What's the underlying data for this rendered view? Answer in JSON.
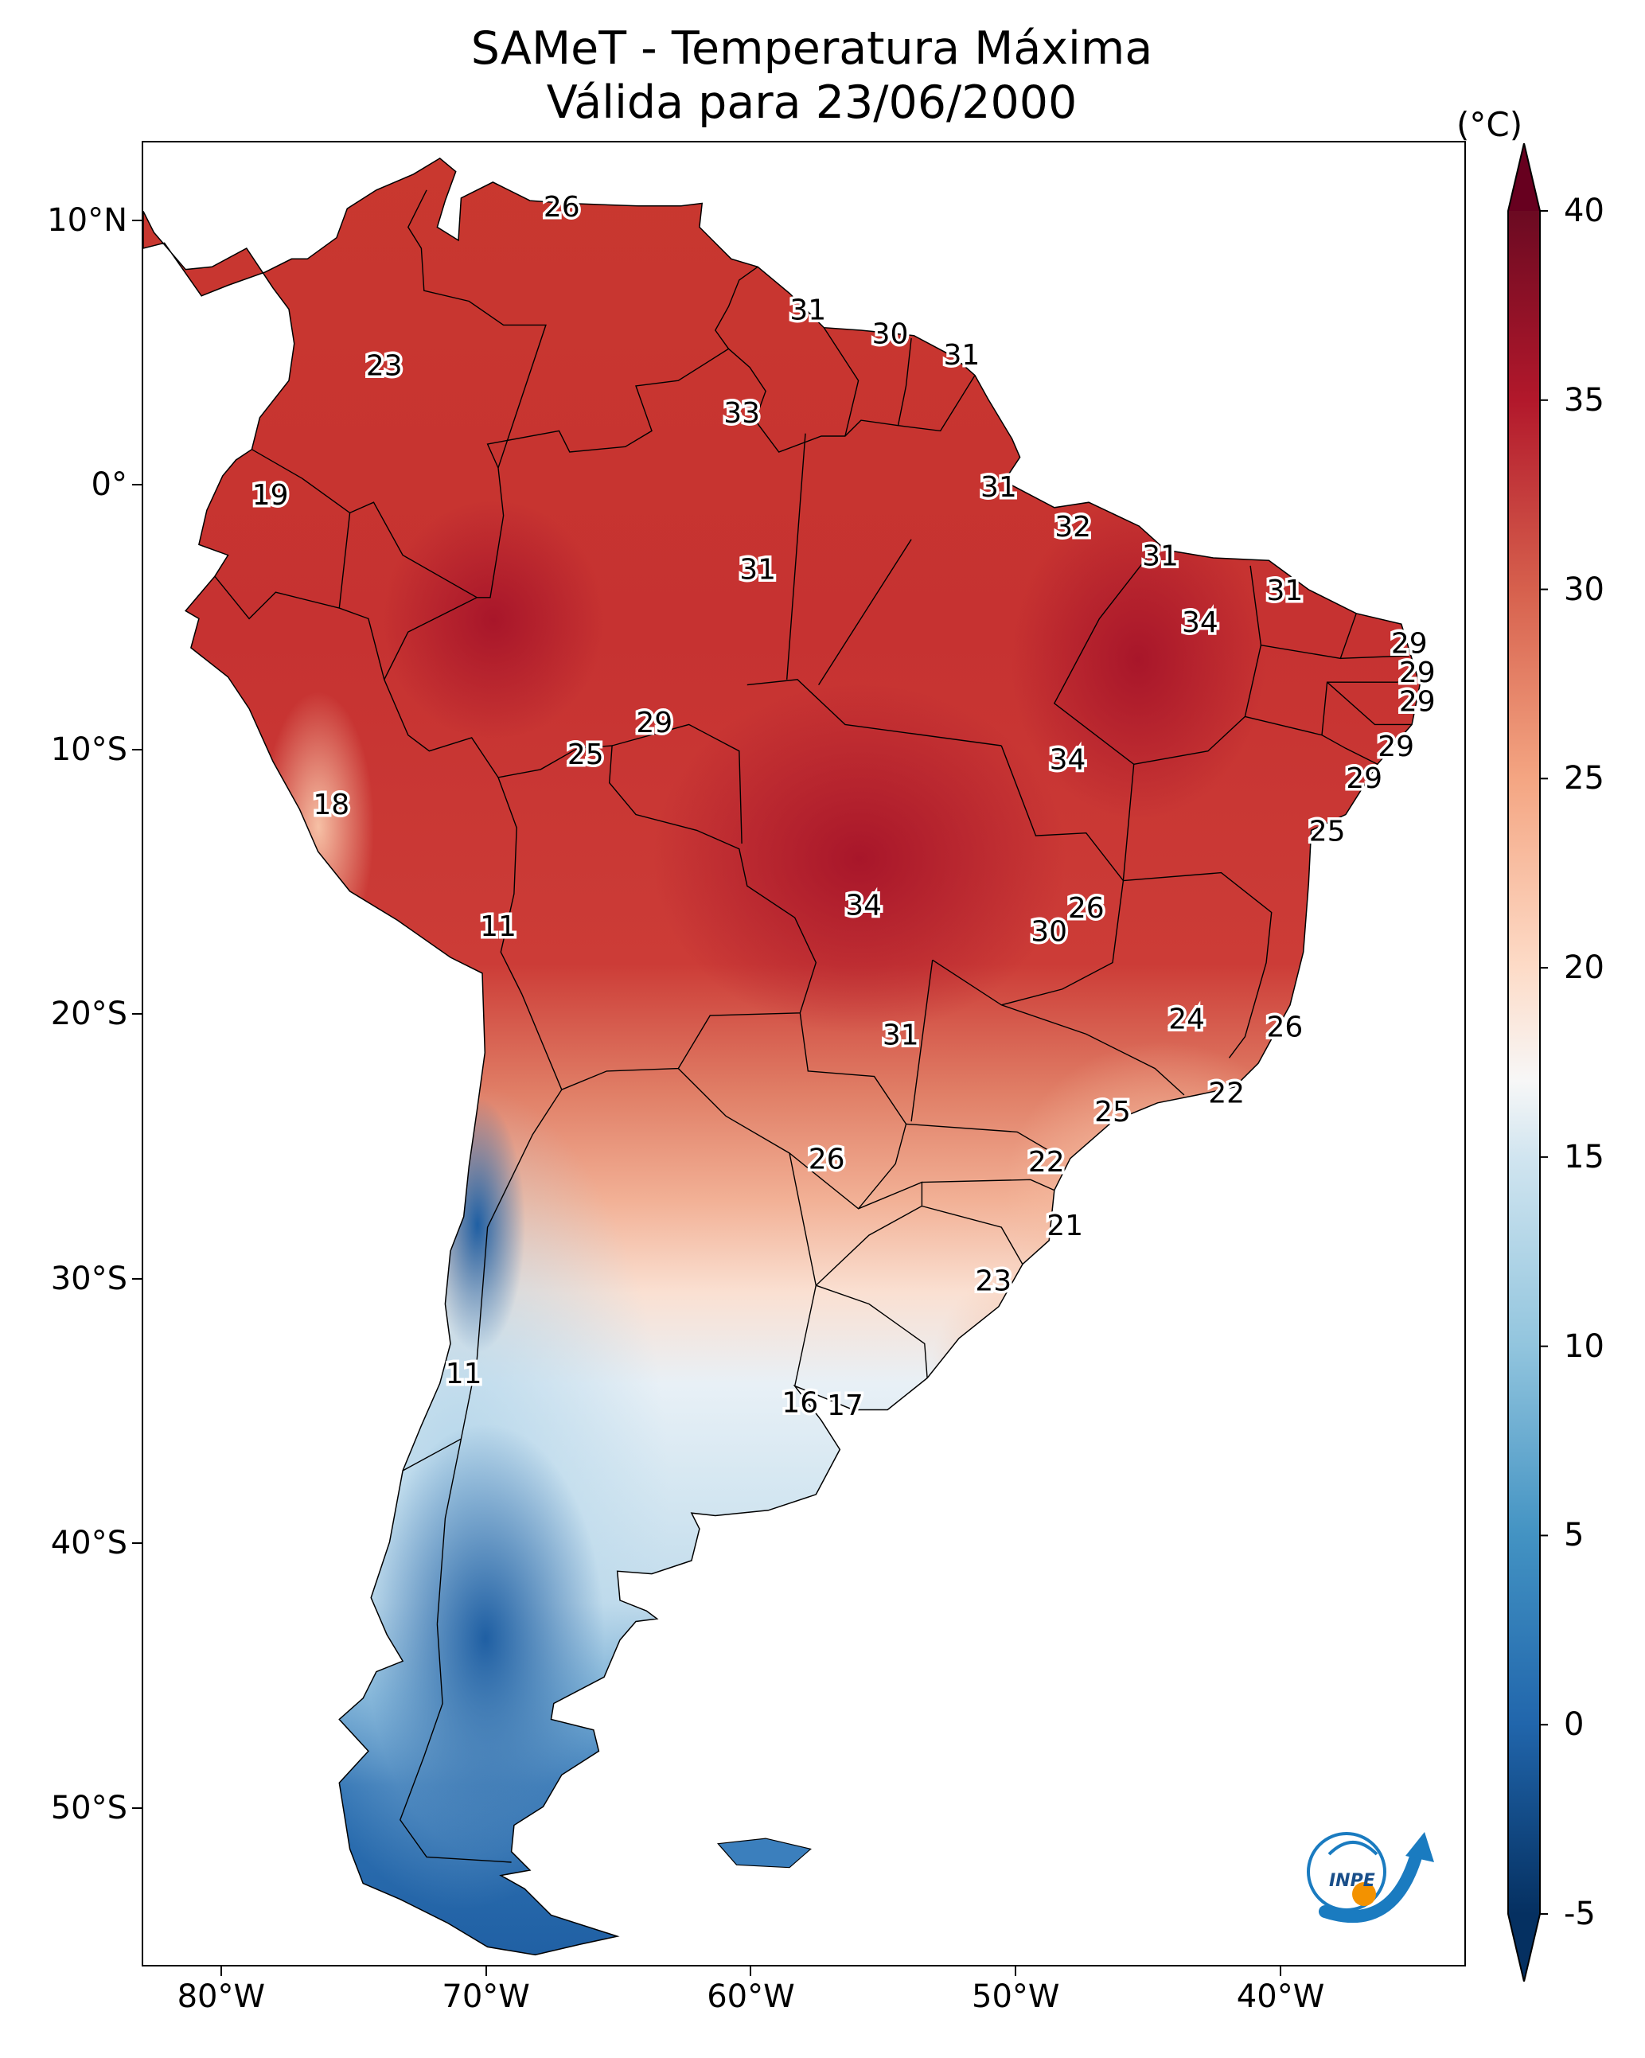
{
  "title": {
    "line1": "SAMeT - Temperatura Máxima",
    "line2": "Válida para 23/06/2000"
  },
  "colorbar": {
    "unit": "(°C)",
    "ticks": [
      "40",
      "35",
      "30",
      "25",
      "20",
      "15",
      "10",
      "5",
      "0",
      "-5"
    ],
    "min": -5,
    "max": 40,
    "colors": {
      "extend_high": "#67001f",
      "c40": "#6b0a22",
      "c35": "#b2182b",
      "c30": "#d6604d",
      "c25": "#f4a582",
      "c20": "#fddbc7",
      "c17": "#f7f7f7",
      "c15": "#d1e5f0",
      "c10": "#92c5de",
      "c5": "#4393c3",
      "c0": "#2166ac",
      "cm5": "#053061",
      "extend_low": "#053061"
    }
  },
  "axes": {
    "lat_labels": [
      "10°N",
      "0°",
      "10°S",
      "20°S",
      "30°S",
      "40°S",
      "50°S"
    ],
    "lon_labels": [
      "80°W",
      "70°W",
      "60°W",
      "50°W",
      "40°W"
    ]
  },
  "contour_values": [
    {
      "text": "26",
      "lon": -67.2,
      "lat": 10.6
    },
    {
      "text": "31",
      "lon": -57.9,
      "lat": 6.7
    },
    {
      "text": "30",
      "lon": -54.8,
      "lat": 5.8
    },
    {
      "text": "31",
      "lon": -52.1,
      "lat": 5.0
    },
    {
      "text": "23",
      "lon": -73.9,
      "lat": 4.6
    },
    {
      "text": "33",
      "lon": -60.4,
      "lat": 2.8
    },
    {
      "text": "19",
      "lon": -78.2,
      "lat": -0.3
    },
    {
      "text": "31",
      "lon": -50.7,
      "lat": 0.0
    },
    {
      "text": "32",
      "lon": -47.9,
      "lat": -1.5
    },
    {
      "text": "31",
      "lon": -44.6,
      "lat": -2.6
    },
    {
      "text": "31",
      "lon": -59.8,
      "lat": -3.1
    },
    {
      "text": "31",
      "lon": -39.9,
      "lat": -3.9
    },
    {
      "text": "34",
      "lon": -43.1,
      "lat": -5.1
    },
    {
      "text": "29",
      "lon": -35.2,
      "lat": -5.9
    },
    {
      "text": "29",
      "lon": -34.9,
      "lat": -7.0
    },
    {
      "text": "29",
      "lon": -34.9,
      "lat": -8.1
    },
    {
      "text": "29",
      "lon": -63.7,
      "lat": -8.9
    },
    {
      "text": "25",
      "lon": -66.3,
      "lat": -10.1
    },
    {
      "text": "29",
      "lon": -35.7,
      "lat": -9.8
    },
    {
      "text": "34",
      "lon": -48.1,
      "lat": -10.3
    },
    {
      "text": "29",
      "lon": -36.9,
      "lat": -11.0
    },
    {
      "text": "18",
      "lon": -75.9,
      "lat": -12.0
    },
    {
      "text": "25",
      "lon": -38.3,
      "lat": -13.0
    },
    {
      "text": "34",
      "lon": -55.8,
      "lat": -15.8
    },
    {
      "text": "26",
      "lon": -47.4,
      "lat": -15.9
    },
    {
      "text": "30",
      "lon": -48.8,
      "lat": -16.8
    },
    {
      "text": "11",
      "lon": -69.6,
      "lat": -16.6
    },
    {
      "text": "24",
      "lon": -43.6,
      "lat": -20.1
    },
    {
      "text": "26",
      "lon": -39.9,
      "lat": -20.4
    },
    {
      "text": "31",
      "lon": -54.4,
      "lat": -20.7
    },
    {
      "text": "22",
      "lon": -42.1,
      "lat": -22.9
    },
    {
      "text": "25",
      "lon": -46.4,
      "lat": -23.6
    },
    {
      "text": "26",
      "lon": -57.2,
      "lat": -25.4
    },
    {
      "text": "22",
      "lon": -48.9,
      "lat": -25.5
    },
    {
      "text": "21",
      "lon": -48.2,
      "lat": -27.9
    },
    {
      "text": "23",
      "lon": -50.9,
      "lat": -30.0
    },
    {
      "text": "11",
      "lon": -70.9,
      "lat": -33.5
    },
    {
      "text": "16",
      "lon": -58.2,
      "lat": -34.6
    },
    {
      "text": "17",
      "lon": -56.5,
      "lat": -34.7
    }
  ],
  "logo": {
    "text": "INPE"
  }
}
